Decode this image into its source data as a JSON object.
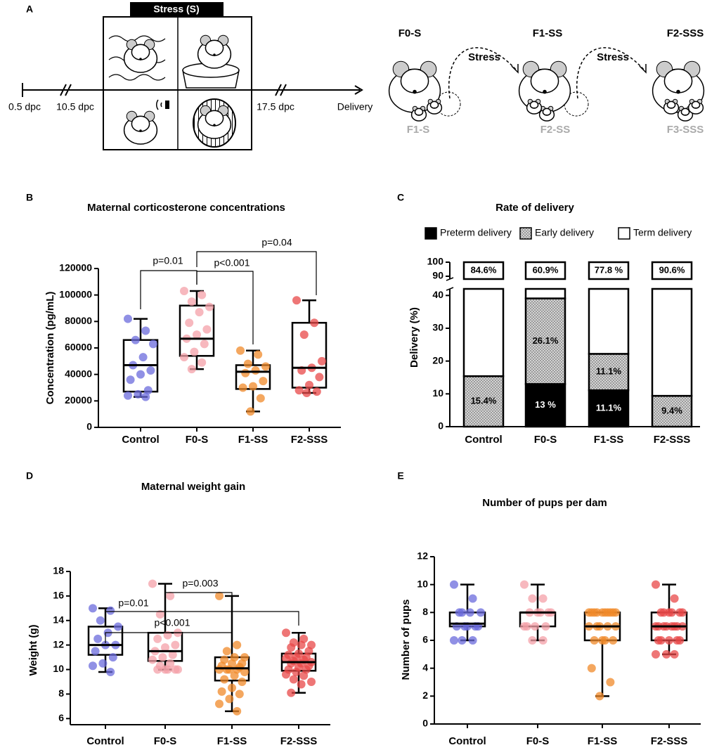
{
  "diagram": {
    "panel": "A",
    "stress_box": "Stress (S)",
    "timeline": [
      "0.5 dpc",
      "10.5 dpc",
      "17.5 dpc",
      "Delivery"
    ],
    "generations": [
      "F0-S",
      "F1-SS",
      "F2-SSS"
    ],
    "arrows": [
      "Stress",
      "Stress"
    ],
    "offspring": [
      "F1-S",
      "F2-SS",
      "F3-SSS"
    ]
  },
  "chart_data": [
    {
      "type": "box",
      "panel": "B",
      "title": "Maternal corticosterone concentrations",
      "y_label": "Concentration (pg/mL)",
      "categories": [
        "Control",
        "F0-S",
        "F1-SS",
        "F2-SSS"
      ],
      "ylim": [
        0,
        120000
      ],
      "yticks": [
        0,
        20000,
        40000,
        60000,
        80000,
        100000,
        120000
      ],
      "annotations": [
        "p=0.01",
        "p<0.001",
        "p=0.04"
      ],
      "boxes": [
        {
          "color": "#6b6bdc",
          "min": 23000,
          "q1": 27000,
          "median": 47000,
          "q3": 66000,
          "max": 82000,
          "points": [
            82000,
            73000,
            66000,
            63000,
            53000,
            47000,
            43000,
            40000,
            36000,
            28000,
            25000,
            24000,
            23000
          ]
        },
        {
          "color": "#f4a0a8",
          "min": 44000,
          "q1": 54000,
          "median": 67000,
          "q3": 92000,
          "max": 103000,
          "points": [
            103000,
            100000,
            95000,
            91000,
            87000,
            79000,
            74000,
            70000,
            67000,
            63000,
            57000,
            53000,
            49000,
            44000
          ]
        },
        {
          "color": "#f08a2a",
          "min": 12000,
          "q1": 29000,
          "median": 42000,
          "q3": 47000,
          "max": 58000,
          "points": [
            58000,
            55000,
            48000,
            46000,
            43000,
            41000,
            35000,
            31000,
            30000,
            22000,
            12000
          ]
        },
        {
          "color": "#e84848",
          "min": 26000,
          "q1": 30000,
          "median": 45000,
          "q3": 79000,
          "max": 96000,
          "points": [
            96000,
            79000,
            70000,
            50000,
            45000,
            43000,
            38000,
            32000,
            28000,
            27000,
            26000
          ]
        }
      ]
    },
    {
      "type": "stacked_bar",
      "panel": "C",
      "title": "Rate of delivery",
      "y_label": "Delivery (%)",
      "categories": [
        "Control",
        "F0-S",
        "F1-SS",
        "F2-SSS"
      ],
      "ylim": [
        0,
        100
      ],
      "ybreak": [
        42,
        88
      ],
      "yticks": [
        0,
        10,
        20,
        30,
        40,
        90,
        100
      ],
      "legend": "top",
      "series": [
        {
          "name": "Preterm delivery",
          "color": "#000000",
          "values": [
            0,
            13,
            11.1,
            0
          ],
          "value_labels": [
            null,
            "13 %",
            "11.1%",
            null
          ]
        },
        {
          "name": "Early delivery",
          "color": "#d4d4d4",
          "pattern": "dots",
          "values": [
            15.4,
            26.1,
            11.1,
            9.4
          ],
          "value_labels": [
            "15.4%",
            "26.1%",
            "11.1%",
            "9.4%"
          ]
        },
        {
          "name": "Term delivery",
          "color": "#ffffff",
          "values": [
            84.6,
            60.9,
            77.8,
            90.6
          ],
          "value_labels": [
            "84.6%",
            "60.9%",
            "77.8 %",
            "90.6%"
          ]
        }
      ]
    },
    {
      "type": "box",
      "panel": "D",
      "title": "Maternal weight gain",
      "y_label": "Weight (g)",
      "categories": [
        "Control",
        "F0-S",
        "F1-SS",
        "F2-SSS"
      ],
      "ylim": [
        5.5,
        18
      ],
      "yticks": [
        6,
        8,
        10,
        12,
        14,
        16,
        18
      ],
      "annotations": [
        "p=0.003",
        "p=0.01",
        "p<0.001"
      ],
      "boxes": [
        {
          "color": "#6b6bdc",
          "min": 9.8,
          "q1": 11.2,
          "median": 12,
          "q3": 13.5,
          "max": 15,
          "points": [
            15,
            14.8,
            14,
            13.5,
            13,
            12.5,
            12,
            12,
            11.5,
            11,
            10.5,
            10.3,
            9.8
          ]
        },
        {
          "color": "#f4a0a8",
          "min": 10,
          "q1": 10.7,
          "median": 11.5,
          "q3": 13,
          "max": 17,
          "points": [
            17,
            16,
            14.5,
            13,
            12.8,
            12.5,
            12,
            11.8,
            11.5,
            11.2,
            11,
            10.8,
            10.5,
            10.3,
            10,
            10,
            10,
            10,
            10
          ]
        },
        {
          "color": "#f08a2a",
          "min": 6.6,
          "q1": 9.1,
          "median": 10.1,
          "q3": 11,
          "max": 16,
          "points": [
            16,
            12,
            11.5,
            11,
            11,
            10.8,
            10.5,
            10.5,
            10.3,
            10.2,
            10,
            10,
            10,
            10,
            9.8,
            9.5,
            9.2,
            9,
            8.5,
            8.2,
            8,
            7.6,
            7.2,
            6.6
          ]
        },
        {
          "color": "#e84848",
          "min": 8.1,
          "q1": 9.9,
          "median": 10.6,
          "q3": 11.3,
          "max": 13,
          "points": [
            13,
            12.5,
            12.2,
            12,
            12,
            11.8,
            11.5,
            11.3,
            11.2,
            11,
            11,
            10.9,
            10.8,
            10.7,
            10.6,
            10.5,
            10.5,
            10.3,
            10.2,
            10,
            10,
            9.8,
            9.6,
            9.5,
            9.2,
            9,
            8.8,
            8.1
          ]
        }
      ]
    },
    {
      "type": "box",
      "panel": "E",
      "title": "Number of pups per dam",
      "y_label": "Number of pups",
      "categories": [
        "Control",
        "F0-S",
        "F1-SS",
        "F2-SSS"
      ],
      "ylim": [
        0,
        12
      ],
      "yticks": [
        0,
        2,
        4,
        6,
        8,
        10,
        12
      ],
      "boxes": [
        {
          "color": "#6b6bdc",
          "min": 6,
          "q1": 7,
          "median": 7.2,
          "q3": 8,
          "max": 10,
          "points": [
            10,
            9,
            8,
            8,
            8,
            8,
            7,
            7,
            7,
            7,
            7,
            6,
            6,
            6
          ]
        },
        {
          "color": "#f4a0a8",
          "min": 6,
          "q1": 7,
          "median": 8,
          "q3": 8,
          "max": 10,
          "points": [
            10,
            9,
            9,
            8,
            8,
            8,
            8,
            8,
            7,
            7,
            7,
            7,
            6,
            6
          ]
        },
        {
          "color": "#f08a2a",
          "min": 2,
          "q1": 6,
          "median": 7,
          "q3": 8,
          "max": 8,
          "points": [
            8,
            8,
            8,
            8,
            8,
            8,
            8,
            8,
            8,
            8,
            7,
            7,
            7,
            7,
            7,
            6,
            6,
            6,
            6,
            4,
            3,
            2
          ]
        },
        {
          "color": "#e84848",
          "min": 5,
          "q1": 6,
          "median": 7,
          "q3": 8,
          "max": 10,
          "points": [
            10,
            9,
            8,
            8,
            8,
            8,
            8,
            8,
            7,
            7,
            7,
            7,
            7,
            7,
            7,
            7,
            6,
            6,
            6,
            6,
            6,
            5,
            5,
            5
          ]
        }
      ]
    }
  ]
}
